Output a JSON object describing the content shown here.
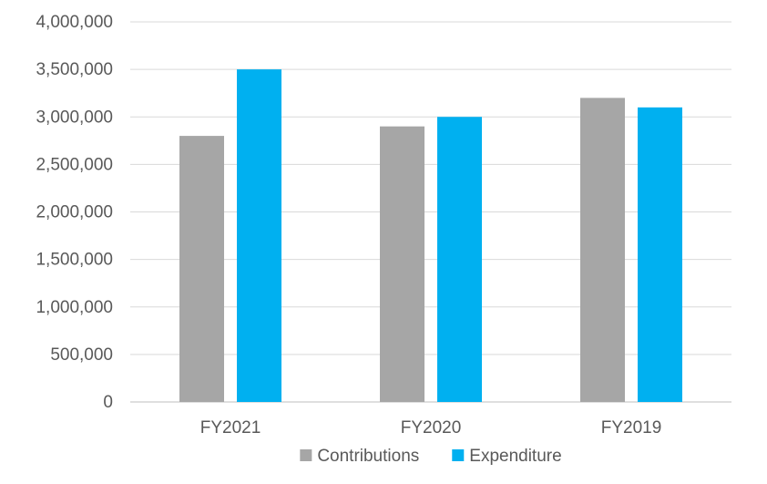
{
  "chart_data": {
    "type": "bar",
    "title": "",
    "xlabel": "",
    "ylabel": "",
    "categories": [
      "FY2021",
      "FY2020",
      "FY2019"
    ],
    "series": [
      {
        "name": "Contributions",
        "color": "#a6a6a6",
        "values": [
          2800000,
          2900000,
          3200000
        ]
      },
      {
        "name": "Expenditure",
        "color": "#00b0f0",
        "values": [
          3500000,
          3000000,
          3100000
        ]
      }
    ],
    "ylim": [
      0,
      4000000
    ],
    "yticks": [
      0,
      500000,
      1000000,
      1500000,
      2000000,
      2500000,
      3000000,
      3500000,
      4000000
    ],
    "ytick_labels": [
      "0",
      "500,000",
      "1,000,000",
      "1,500,000",
      "2,000,000",
      "2,500,000",
      "3,000,000",
      "3,500,000",
      "4,000,000"
    ],
    "grid": true,
    "legend_position": "bottom"
  }
}
